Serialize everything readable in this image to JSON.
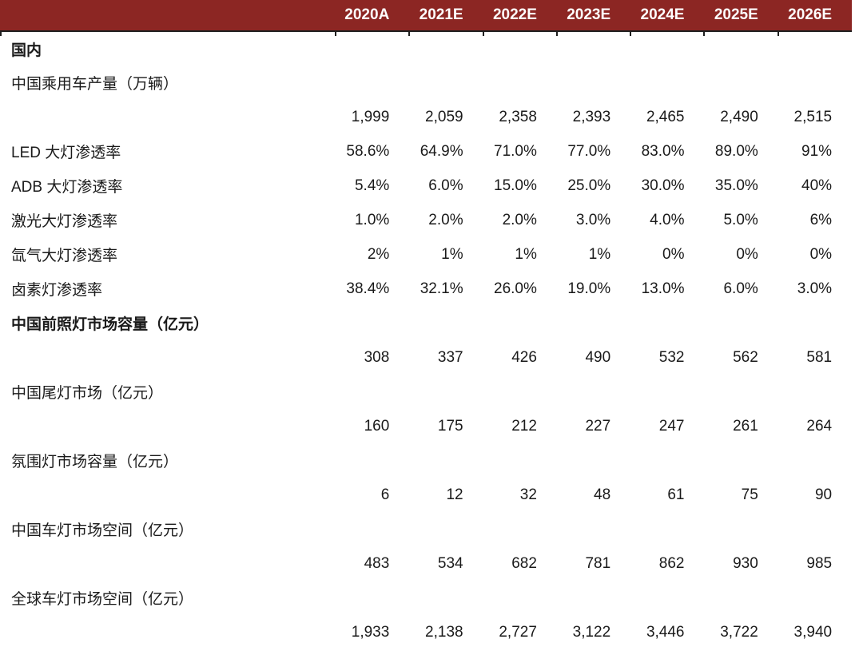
{
  "colors": {
    "header_bg": "#8C2623",
    "header_text": "#FFFFFF",
    "body_text": "#1A1A1A",
    "header_border": "#1F1F1F"
  },
  "table": {
    "columns": [
      "2020A",
      "2021E",
      "2022E",
      "2023E",
      "2024E",
      "2025E",
      "2026E"
    ],
    "rows": [
      {
        "label": "国内",
        "bold": true,
        "values": []
      },
      {
        "label": "中国乘用车产量（万辆）",
        "bold": false,
        "values": []
      },
      {
        "label": "",
        "bold": false,
        "values": [
          "1,999",
          "2,059",
          "2,358",
          "2,393",
          "2,465",
          "2,490",
          "2,515"
        ]
      },
      {
        "label": "LED 大灯渗透率",
        "bold": false,
        "values": [
          "58.6%",
          "64.9%",
          "71.0%",
          "77.0%",
          "83.0%",
          "89.0%",
          "91%"
        ]
      },
      {
        "label": "ADB 大灯渗透率",
        "bold": false,
        "values": [
          "5.4%",
          "6.0%",
          "15.0%",
          "25.0%",
          "30.0%",
          "35.0%",
          "40%"
        ]
      },
      {
        "label": "激光大灯渗透率",
        "bold": false,
        "values": [
          "1.0%",
          "2.0%",
          "2.0%",
          "3.0%",
          "4.0%",
          "5.0%",
          "6%"
        ]
      },
      {
        "label": "氙气大灯渗透率",
        "bold": false,
        "values": [
          "2%",
          "1%",
          "1%",
          "1%",
          "0%",
          "0%",
          "0%"
        ]
      },
      {
        "label": "卤素灯渗透率",
        "bold": false,
        "values": [
          "38.4%",
          "32.1%",
          "26.0%",
          "19.0%",
          "13.0%",
          "6.0%",
          "3.0%"
        ]
      },
      {
        "label": "中国前照灯市场容量（亿元）",
        "bold": true,
        "values": []
      },
      {
        "label": "",
        "bold": false,
        "values": [
          "308",
          "337",
          "426",
          "490",
          "532",
          "562",
          "581"
        ]
      },
      {
        "label": "中国尾灯市场（亿元）",
        "bold": false,
        "values": []
      },
      {
        "label": "",
        "bold": false,
        "values": [
          "160",
          "175",
          "212",
          "227",
          "247",
          "261",
          "264"
        ]
      },
      {
        "label": "氛围灯市场容量（亿元）",
        "bold": false,
        "values": []
      },
      {
        "label": "",
        "bold": false,
        "values": [
          "6",
          "12",
          "32",
          "48",
          "61",
          "75",
          "90"
        ]
      },
      {
        "label": "中国车灯市场空间（亿元）",
        "bold": false,
        "values": []
      },
      {
        "label": "",
        "bold": false,
        "values": [
          "483",
          "534",
          "682",
          "781",
          "862",
          "930",
          "985"
        ]
      },
      {
        "label": "全球车灯市场空间（亿元）",
        "bold": false,
        "values": []
      },
      {
        "label": "",
        "bold": false,
        "values": [
          "1,933",
          "2,138",
          "2,727",
          "3,122",
          "3,446",
          "3,722",
          "3,940"
        ]
      }
    ]
  }
}
